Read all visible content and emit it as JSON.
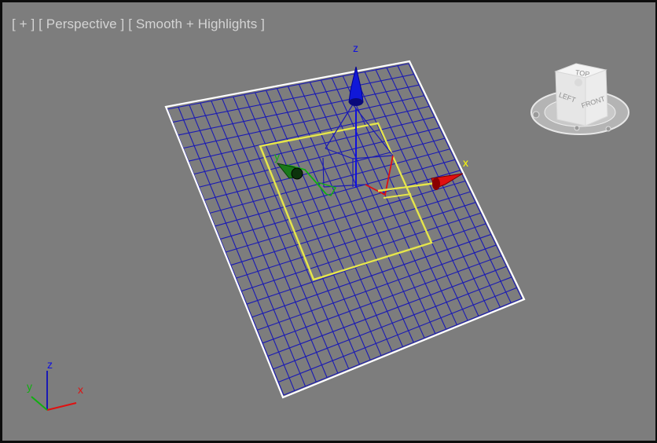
{
  "viewport": {
    "menu_plus": "[ + ]",
    "view_mode": "[ Perspective ]",
    "shading_mode": "[ Smooth + Highlights ]"
  },
  "gizmo": {
    "x_label": "x",
    "y_label": "y",
    "z_label": "z"
  },
  "viewcube": {
    "front_label": "FRONT",
    "left_label": "LEFT",
    "top_label": "TOP"
  },
  "world_axis": {
    "x_label": "x",
    "y_label": "y",
    "z_label": "z"
  },
  "colors": {
    "background": "#7d7d7d",
    "grid_wire": "#1a1ab4",
    "selection_bracket": "#ffffff",
    "gizmo_plane_highlight": "#e6e64a",
    "axis_x": "#e01010",
    "axis_y": "#10b010",
    "axis_z": "#1010e0",
    "axis_label_active": "#ffff00"
  }
}
